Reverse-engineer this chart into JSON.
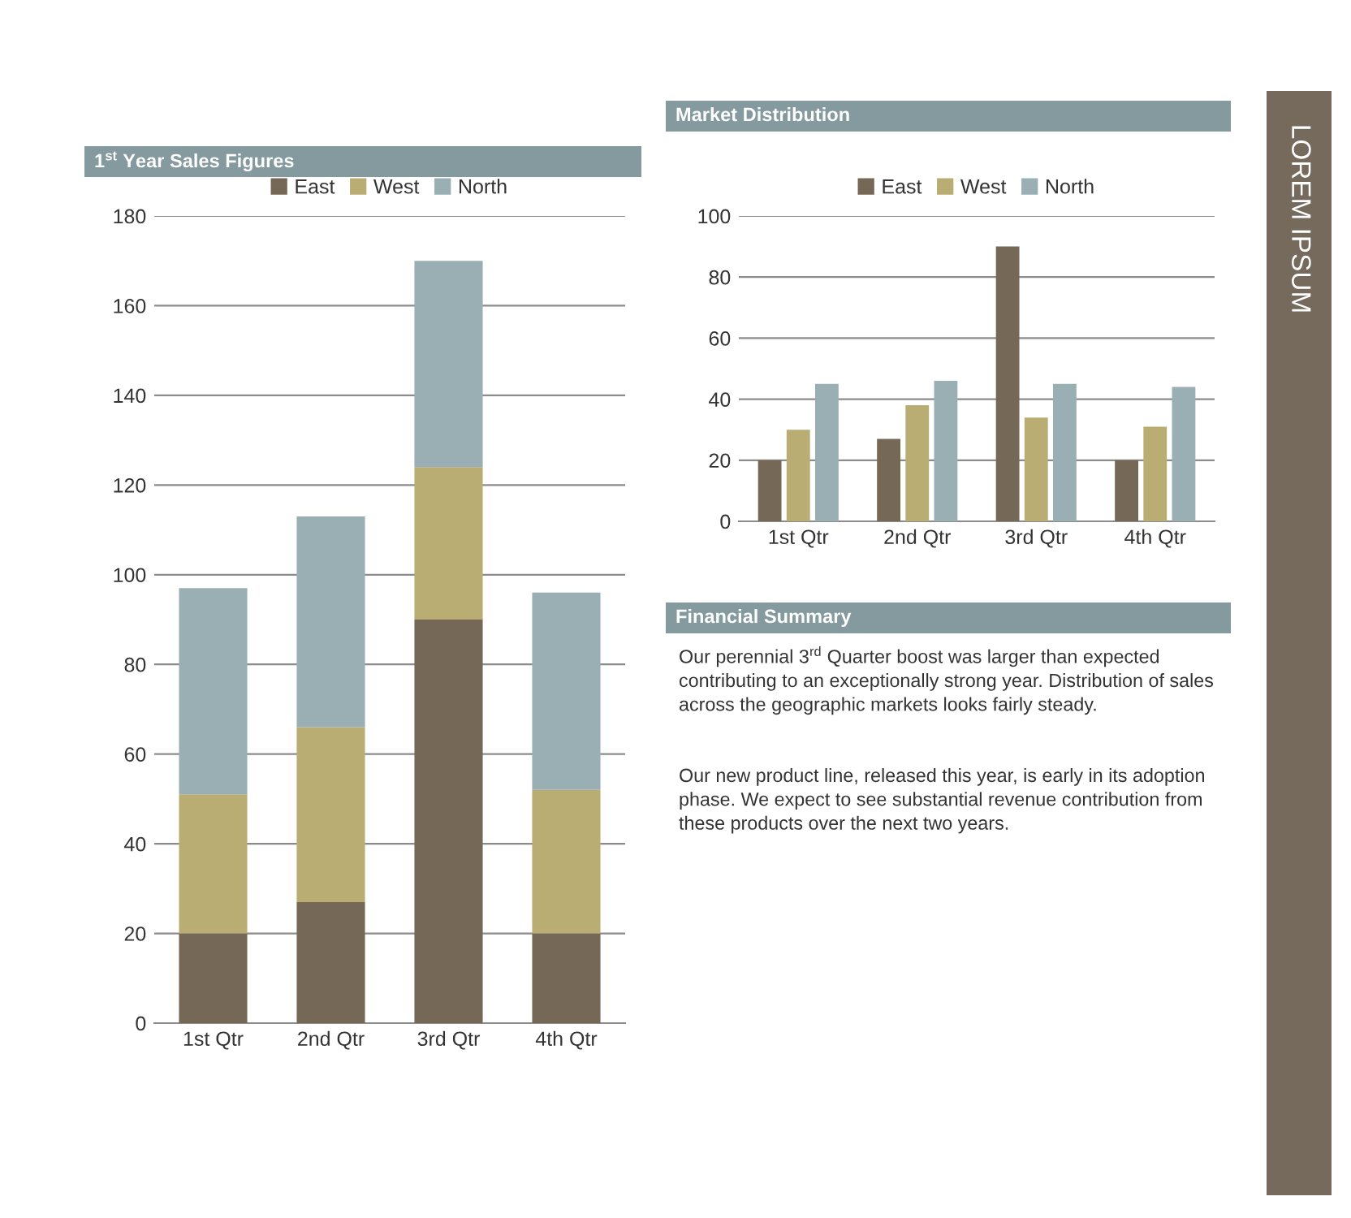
{
  "chart_data": [
    {
      "type": "bar",
      "title": "1$^{st}$ Year Sales Figures",
      "stacked": true,
      "categories": [
        "1st Qtr",
        "2nd Qtr",
        "3rd Qtr",
        "4th Qtr"
      ],
      "series": [
        {
          "name": "East",
          "color": "#756857",
          "values": [
            20,
            27,
            90,
            20
          ]
        },
        {
          "name": "West",
          "color": "#b9ad74",
          "values": [
            31,
            39,
            34,
            32
          ]
        },
        {
          "name": "North",
          "color": "#9aafb3",
          "values": [
            46,
            47,
            46,
            44
          ]
        }
      ],
      "ylim": [
        0,
        180
      ],
      "yticks": [
        0,
        20,
        40,
        60,
        80,
        100,
        120,
        140,
        160,
        180
      ],
      "grid": "y",
      "legend": "top"
    },
    {
      "type": "bar",
      "title": "Market Distribution",
      "categories": [
        "1st Qtr",
        "2nd Qtr",
        "3rd Qtr",
        "4th Qtr"
      ],
      "series": [
        {
          "name": "East",
          "color": "#756857",
          "values": [
            20,
            27,
            90,
            20
          ]
        },
        {
          "name": "West",
          "color": "#b9ad74",
          "values": [
            30,
            38,
            34,
            31
          ]
        },
        {
          "name": "North",
          "color": "#9aafb3",
          "values": [
            45,
            46,
            45,
            44
          ]
        }
      ],
      "ylim": [
        0,
        100
      ],
      "yticks": [
        0,
        20,
        40,
        60,
        80,
        100
      ],
      "grid": "y",
      "legend": "top"
    },
    {
      "type": "other",
      "title": "Financial Summary",
      "annotations": [
        "Our perennial 3$^{rd}$ Quarter boost was larger than expected\ncontributing to an exceptionally strong year. Distribution of sales\nacross the geographic markets looks fairly steady.",
        "Our new product line, released this year, is early in its adoption\nphase. We expect to see substantial revenue contribution from\nthese products over the next two years."
      ]
    },
    {
      "type": "other",
      "title": "LOREM IPSUM"
    }
  ]
}
